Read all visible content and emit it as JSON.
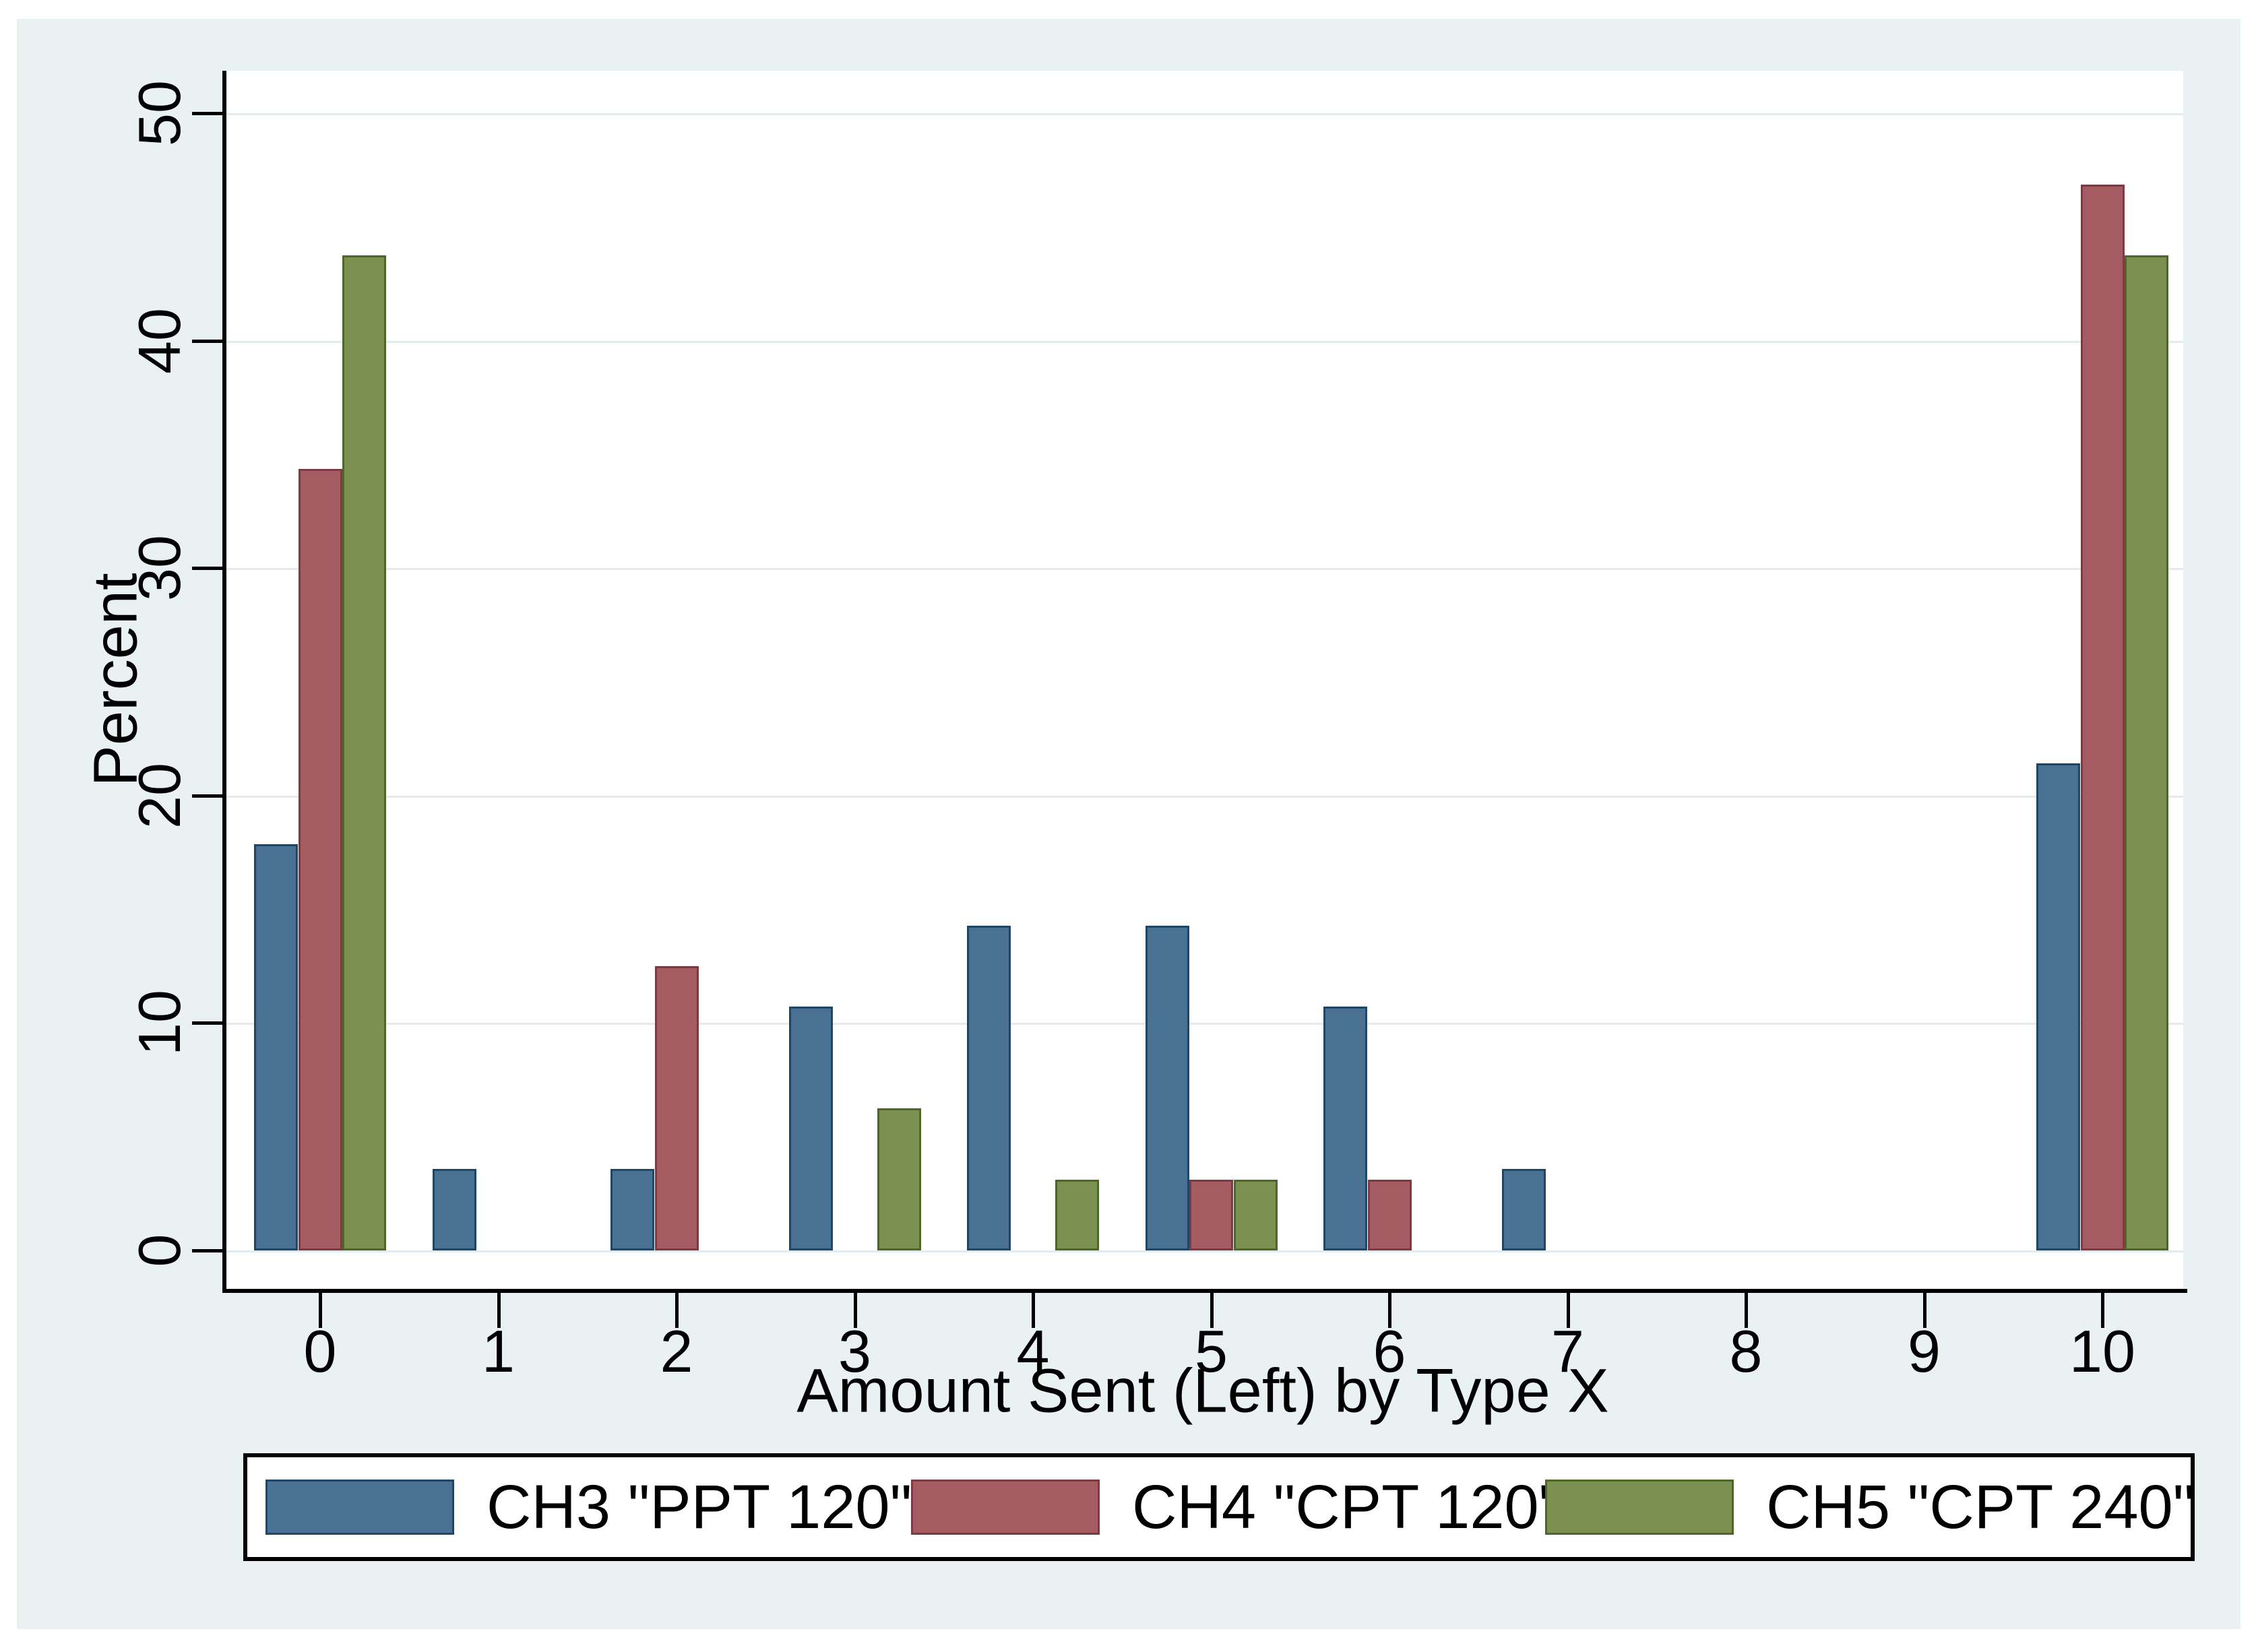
{
  "figure": {
    "canvas_background": "#e9f1f2",
    "plot_background": "#ffffff",
    "grid_color": "#e2ebee",
    "axis_color": "#000000",
    "text_color": "#000000"
  },
  "chart_data": {
    "type": "bar",
    "title": "",
    "xlabel": "Amount Sent (Left) by Type X",
    "ylabel": "Percent",
    "categories": [
      0,
      1,
      2,
      3,
      4,
      5,
      6,
      7,
      8,
      9,
      10
    ],
    "yticks": [
      0,
      10,
      20,
      30,
      40,
      50
    ],
    "ylim": [
      0,
      52
    ],
    "xlim": [
      -0.55,
      10.45
    ],
    "grid": "horizontal",
    "legend_position": "bottom",
    "series": [
      {
        "name": "CH3 \"PPT 120\"",
        "color": "#4a7191",
        "border_color": "#1c4766",
        "values": [
          17.857,
          3.571,
          3.571,
          10.714,
          14.286,
          14.286,
          10.714,
          3.571,
          null,
          null,
          21.429
        ]
      },
      {
        "name": "CH4 \"CPT 120\"",
        "color": "#a45b61",
        "border_color": "#7d3a42",
        "values": [
          34.375,
          null,
          12.5,
          null,
          null,
          3.125,
          3.125,
          null,
          null,
          null,
          46.875
        ]
      },
      {
        "name": "CH5 \"CPT 240\"",
        "color": "#7c9151",
        "border_color": "#4d6826",
        "values": [
          43.75,
          null,
          null,
          6.25,
          3.125,
          3.125,
          null,
          null,
          null,
          null,
          43.75
        ]
      }
    ]
  }
}
